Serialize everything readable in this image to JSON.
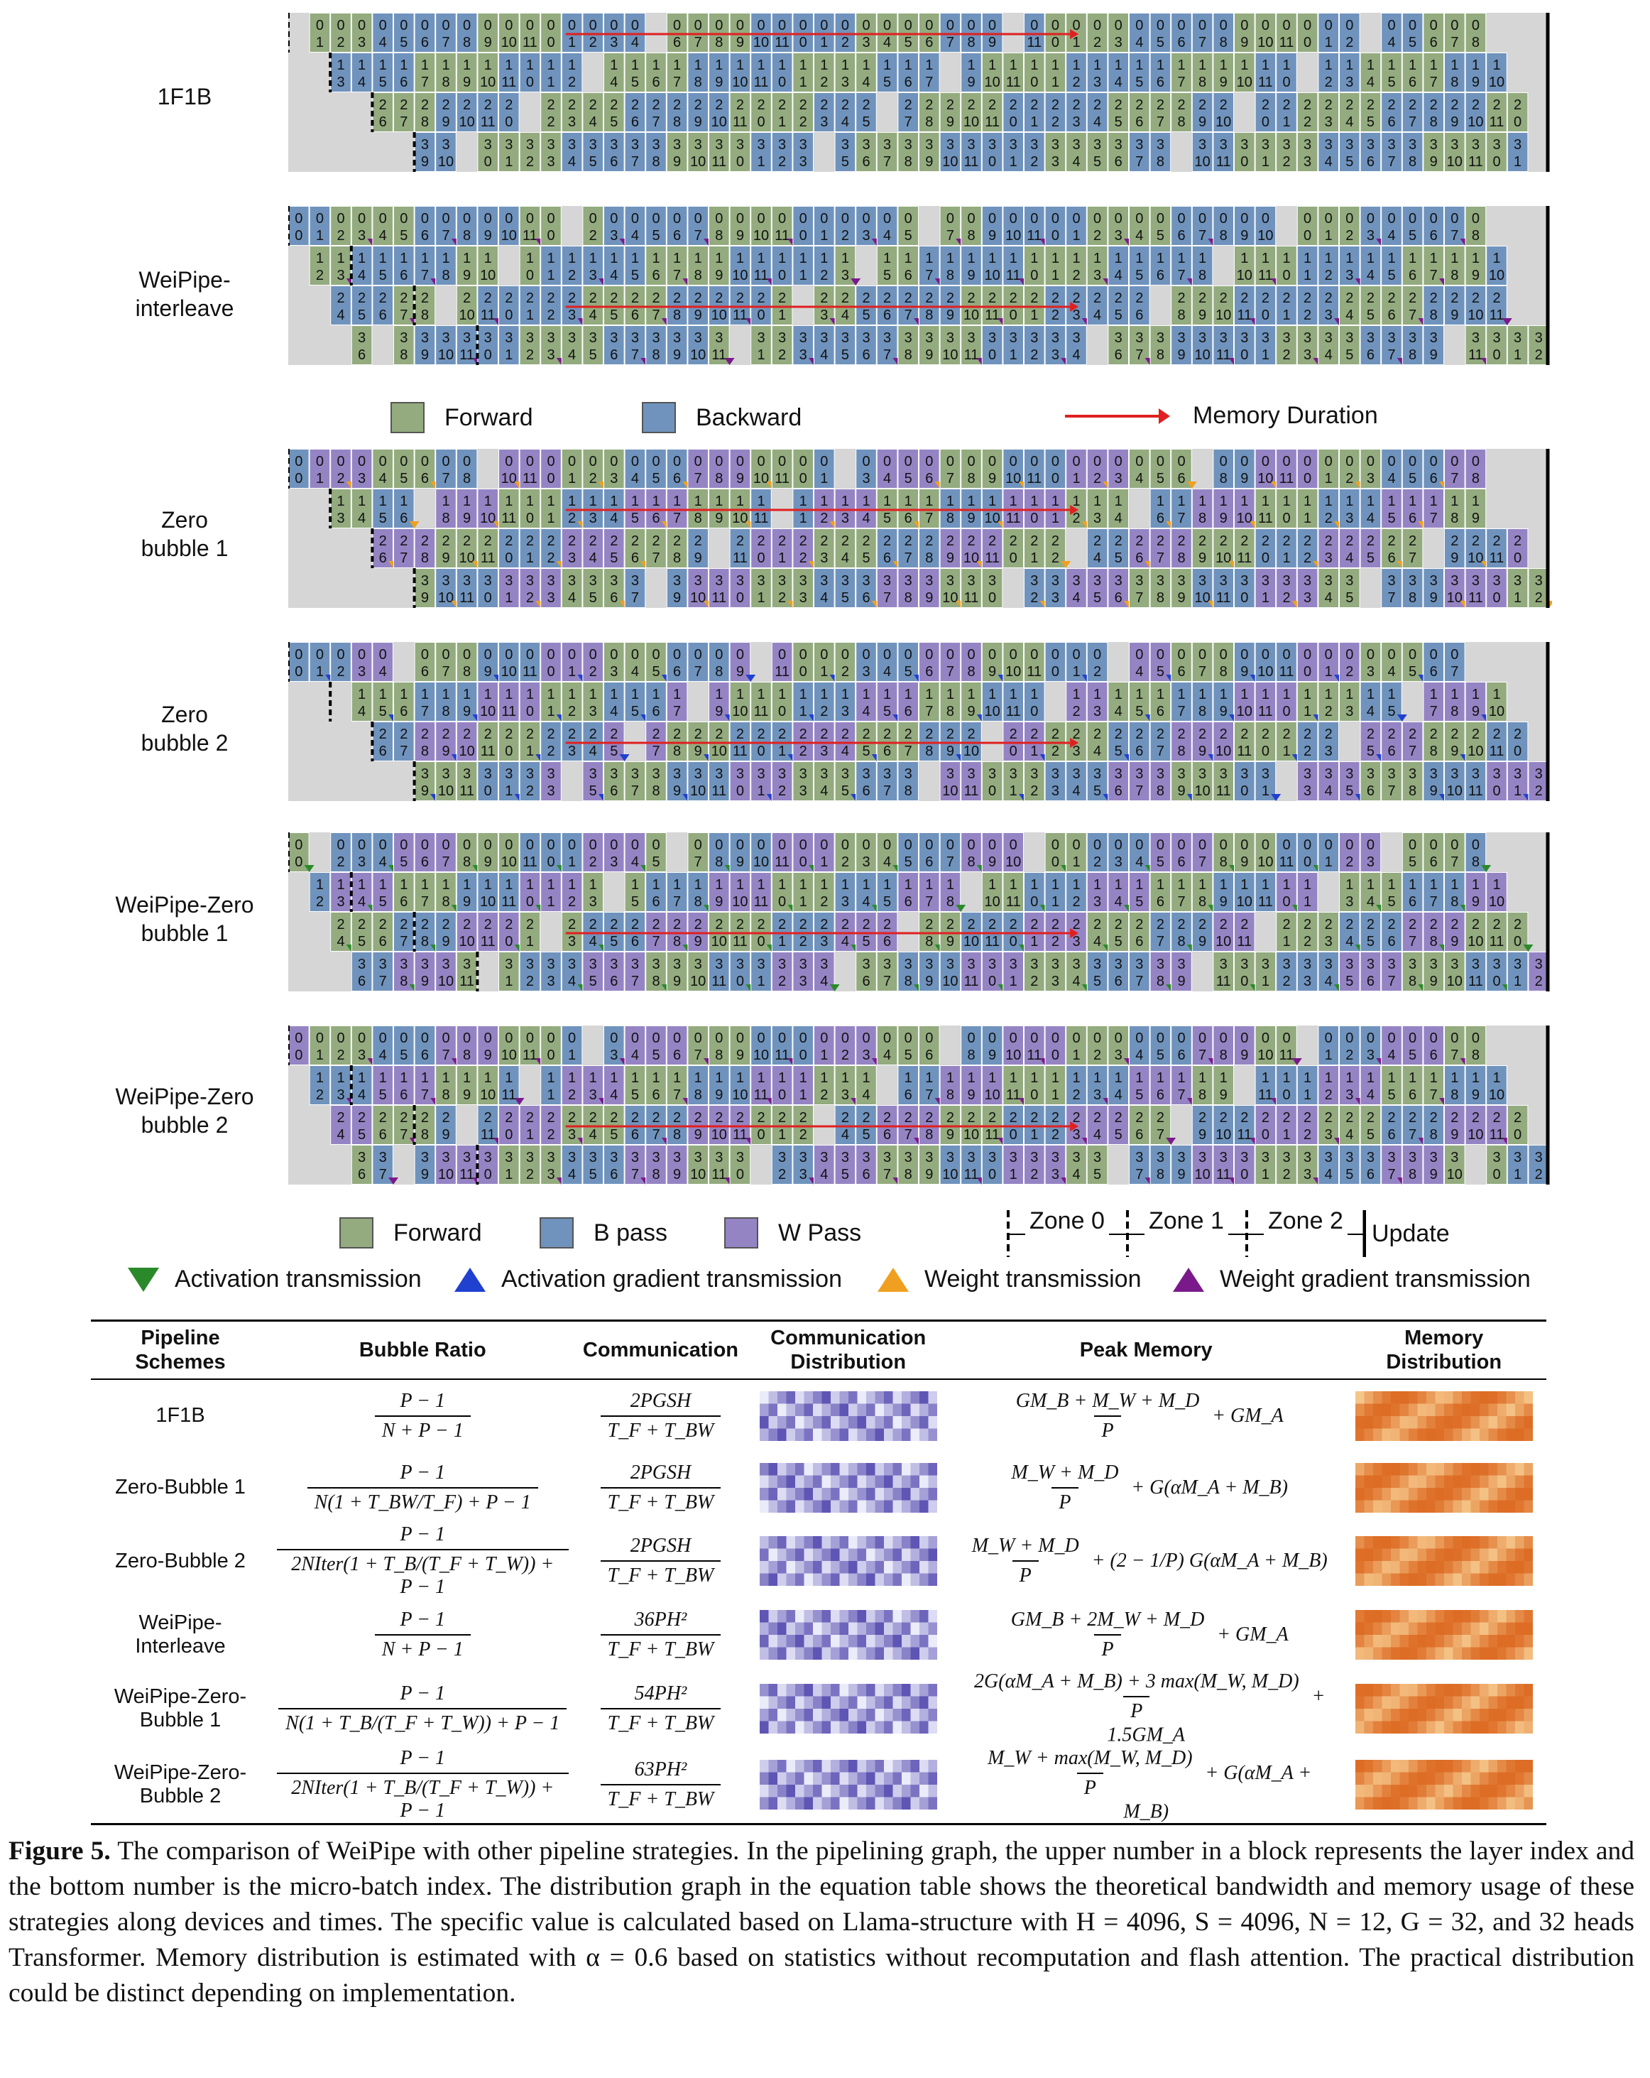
{
  "schemes": [
    {
      "label": "1F1B"
    },
    {
      "label": "WeiPipe-\ninterleave"
    },
    {
      "label": "Zero\nbubble 1"
    },
    {
      "label": "Zero\nbubble 2"
    },
    {
      "label": "WeiPipe-Zero\nbubble 1"
    },
    {
      "label": "WeiPipe-Zero\nbubble 2"
    }
  ],
  "legend1": {
    "forward": "Forward",
    "backward": "Backward",
    "memory": "Memory Duration"
  },
  "legend2": {
    "forward": "Forward",
    "bpass": "B pass",
    "wpass": "W Pass",
    "zone0": "Zone 0",
    "zone1": "Zone 1",
    "zone2": "Zone 2",
    "update": "Update"
  },
  "legend3": {
    "activation": "Activation transmission",
    "activation_grad": "Activation gradient transmission",
    "weight": "Weight transmission",
    "weight_grad": "Weight gradient transmission"
  },
  "colors": {
    "forward": "#93ab7e",
    "backward": "#6f93bd",
    "wpass": "#9584c4",
    "idle": "#d6d6d6",
    "memory_arrow": "#e02020",
    "activation_tri": "#2a8a2a",
    "activation_grad_tri": "#2040d0",
    "weight_tri": "#f0a020",
    "weight_grad_tri": "#7a1a8a"
  },
  "table": {
    "headers": [
      "Pipeline\nSchemes",
      "Bubble Ratio",
      "Communication",
      "Communication\nDistribution",
      "Peak Memory",
      "Memory\nDistribution"
    ],
    "rows": [
      {
        "scheme": "1F1B",
        "bubble_num": "P − 1",
        "bubble_den": "N + P − 1",
        "comm_num": "2PGSH",
        "comm_den": "T_F + T_BW",
        "mem_num": "GM_B + M_W + M_D",
        "mem_den": "P",
        "mem_tail": "+ GM_A"
      },
      {
        "scheme": "Zero-Bubble 1",
        "bubble_num": "P − 1",
        "bubble_den": "N(1 + T_BW/T_F) + P − 1",
        "comm_num": "2PGSH",
        "comm_den": "T_F + T_BW",
        "mem_num": "M_W + M_D",
        "mem_den": "P",
        "mem_tail": "+ G(αM_A + M_B)"
      },
      {
        "scheme": "Zero-Bubble 2",
        "bubble_num": "P − 1",
        "bubble_den": "2NIter(1 + T_B/(T_F + T_W)) + P − 1",
        "comm_num": "2PGSH",
        "comm_den": "T_F + T_BW",
        "mem_num": "M_W + M_D",
        "mem_den": "P",
        "mem_tail": "+ (2 − 1/P) G(αM_A + M_B)"
      },
      {
        "scheme": "WeiPipe-\nInterleave",
        "bubble_num": "P − 1",
        "bubble_den": "N + P − 1",
        "comm_num": "36PH²",
        "comm_den": "T_F + T_BW",
        "mem_num": "GM_B + 2M_W + M_D",
        "mem_den": "P",
        "mem_tail": "+ GM_A"
      },
      {
        "scheme": "WeiPipe-Zero-\nBubble 1",
        "bubble_num": "P − 1",
        "bubble_den": "N(1 + T_B/(T_F + T_W)) + P − 1",
        "comm_num": "54PH²",
        "comm_den": "T_F + T_BW",
        "mem_num": "2G(αM_A + M_B) + 3 max(M_W, M_D)",
        "mem_den": "P",
        "mem_tail": "+ 1.5GM_A"
      },
      {
        "scheme": "WeiPipe-Zero-\nBubble 2",
        "bubble_num": "P − 1",
        "bubble_den": "2NIter(1 + T_B/(T_F + T_W)) + P − 1",
        "comm_num": "63PH²",
        "comm_den": "T_F + T_BW",
        "mem_num": "M_W + max(M_W, M_D)",
        "mem_den": "P",
        "mem_tail": "+ G(αM_A + M_B)"
      }
    ]
  },
  "caption": {
    "label": "Figure 5.",
    "text": " The comparison of WeiPipe with other pipeline strategies. In the pipelining graph, the upper number in a block represents the layer index and the bottom number is the micro-batch index. The distribution graph in the equation table shows the theoretical bandwidth and memory usage of these strategies along devices and times. The specific value is calculated based on Llama-structure with H = 4096, S = 4096, N = 12, G = 32, and 32 heads Transformer. Memory distribution is estimated with α = 0.6 based on statistics without recomputation and flash attention. The practical distribution could be distinct depending on implementation."
  }
}
